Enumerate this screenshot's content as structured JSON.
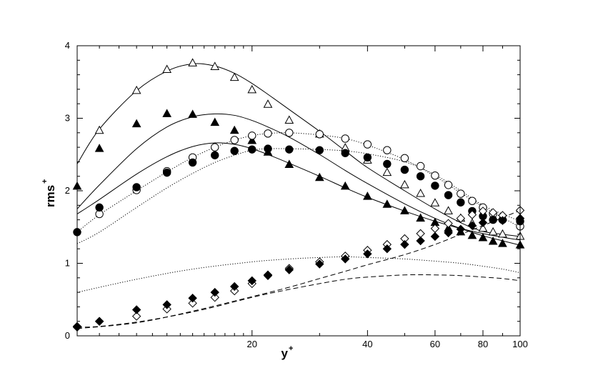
{
  "chart_data": {
    "type": "line",
    "title": "",
    "xlabel": "y",
    "xlabel_superscript": "+",
    "ylabel": "rms",
    "ylabel_superscript": "+",
    "x_scale": "log",
    "xlim": [
      7,
      100
    ],
    "ylim": [
      0,
      4
    ],
    "x_ticks": [
      20,
      40,
      60,
      80,
      100
    ],
    "y_ticks": [
      0,
      1,
      2,
      3,
      4
    ],
    "grid": false,
    "legend": "none",
    "lines": [
      {
        "style": "solid",
        "x": [
          7,
          8,
          10,
          12,
          14,
          16,
          18,
          20,
          22,
          25,
          30,
          35,
          40,
          50,
          60,
          70,
          80,
          90,
          100
        ],
        "y": [
          2.37,
          2.85,
          3.38,
          3.65,
          3.75,
          3.72,
          3.62,
          3.48,
          3.33,
          3.12,
          2.82,
          2.55,
          2.32,
          2.0,
          1.75,
          1.56,
          1.44,
          1.4,
          1.37
        ]
      },
      {
        "style": "solid",
        "x": [
          7,
          8,
          10,
          12,
          14,
          16,
          18,
          20,
          22,
          25,
          30,
          35,
          40,
          50,
          60,
          70,
          80,
          90,
          100
        ],
        "y": [
          1.75,
          2.08,
          2.58,
          2.88,
          3.02,
          3.06,
          3.04,
          2.97,
          2.88,
          2.74,
          2.5,
          2.28,
          2.1,
          1.82,
          1.62,
          1.48,
          1.38,
          1.31,
          1.25
        ]
      },
      {
        "style": "solid",
        "x": [
          7,
          8,
          10,
          12,
          14,
          16,
          18,
          20,
          22,
          25,
          30,
          35,
          40,
          50,
          60,
          70,
          80,
          90,
          100
        ],
        "y": [
          1.68,
          1.88,
          2.23,
          2.47,
          2.61,
          2.66,
          2.64,
          2.58,
          2.5,
          2.38,
          2.2,
          2.04,
          1.91,
          1.72,
          1.58,
          1.48,
          1.41,
          1.36,
          1.32
        ]
      },
      {
        "style": "dotted",
        "x": [
          7,
          8,
          10,
          12,
          14,
          16,
          18,
          20,
          22,
          25,
          30,
          35,
          40,
          50,
          60,
          70,
          80,
          90,
          100
        ],
        "y": [
          1.43,
          1.67,
          2.0,
          2.26,
          2.46,
          2.6,
          2.7,
          2.76,
          2.79,
          2.8,
          2.77,
          2.72,
          2.63,
          2.43,
          2.2,
          1.97,
          1.78,
          1.63,
          1.5
        ]
      },
      {
        "style": "dotted",
        "x": [
          7,
          8,
          10,
          12,
          14,
          16,
          18,
          20,
          22,
          25,
          30,
          35,
          40,
          50,
          60,
          70,
          80,
          90,
          100
        ],
        "y": [
          1.27,
          1.43,
          1.77,
          2.04,
          2.24,
          2.39,
          2.49,
          2.56,
          2.58,
          2.58,
          2.57,
          2.55,
          2.51,
          2.4,
          2.22,
          2.0,
          1.8,
          1.68,
          1.58
        ]
      },
      {
        "style": "dotted",
        "x": [
          7,
          10,
          14,
          20,
          25,
          30,
          35,
          40,
          50,
          60,
          70,
          80,
          90,
          100
        ],
        "y": [
          0.6,
          0.78,
          0.92,
          1.02,
          1.06,
          1.08,
          1.09,
          1.08,
          1.06,
          1.03,
          1.0,
          0.96,
          0.92,
          0.87
        ]
      },
      {
        "style": "dashed",
        "x": [
          7,
          8,
          10,
          12,
          14,
          16,
          18,
          20,
          22,
          25,
          30,
          35,
          40,
          50,
          60,
          70,
          80,
          90,
          100
        ],
        "y": [
          0.12,
          0.13,
          0.19,
          0.26,
          0.33,
          0.4,
          0.47,
          0.53,
          0.58,
          0.64,
          0.72,
          0.78,
          0.81,
          0.84,
          0.84,
          0.83,
          0.81,
          0.79,
          0.76
        ]
      },
      {
        "style": "dashed",
        "x": [
          7,
          10,
          14,
          20,
          25,
          30,
          35,
          40,
          50,
          60,
          70,
          80,
          90,
          100
        ],
        "y": [
          0.1,
          0.18,
          0.34,
          0.54,
          0.67,
          0.79,
          0.89,
          0.98,
          1.12,
          1.26,
          1.4,
          1.52,
          1.63,
          1.73
        ]
      }
    ],
    "markers": [
      {
        "shape": "triangle",
        "filled": false,
        "x": [
          8,
          10,
          12,
          14,
          16,
          18,
          20,
          22,
          25,
          30,
          35,
          40,
          45,
          50,
          55,
          60,
          65,
          70,
          75,
          80,
          85,
          90,
          100
        ],
        "y": [
          2.83,
          3.38,
          3.67,
          3.76,
          3.71,
          3.56,
          3.39,
          3.19,
          2.97,
          2.78,
          2.59,
          2.42,
          2.25,
          2.08,
          1.96,
          1.83,
          1.72,
          1.62,
          1.55,
          1.48,
          1.43,
          1.4,
          1.37
        ]
      },
      {
        "shape": "triangle",
        "filled": true,
        "x": [
          7,
          8,
          10,
          12,
          14,
          16,
          18,
          20,
          22,
          25,
          30,
          35,
          40,
          45,
          50,
          55,
          60,
          65,
          70,
          75,
          80,
          85,
          90,
          100
        ],
        "y": [
          2.06,
          2.58,
          2.92,
          3.06,
          3.05,
          2.94,
          2.83,
          2.69,
          2.53,
          2.36,
          2.18,
          2.06,
          1.92,
          1.81,
          1.72,
          1.62,
          1.56,
          1.48,
          1.43,
          1.38,
          1.35,
          1.3,
          1.27,
          1.25
        ]
      },
      {
        "shape": "circle",
        "filled": false,
        "x": [
          8,
          10,
          12,
          14,
          16,
          18,
          20,
          22,
          25,
          30,
          35,
          40,
          45,
          50,
          55,
          60,
          65,
          70,
          75,
          80,
          85,
          90,
          100
        ],
        "y": [
          1.68,
          2.01,
          2.27,
          2.46,
          2.6,
          2.7,
          2.76,
          2.79,
          2.8,
          2.78,
          2.72,
          2.64,
          2.56,
          2.45,
          2.34,
          2.21,
          2.08,
          1.96,
          1.86,
          1.77,
          1.68,
          1.6,
          1.51
        ]
      },
      {
        "shape": "circle",
        "filled": true,
        "x": [
          7,
          8,
          10,
          12,
          14,
          16,
          18,
          20,
          22,
          25,
          30,
          35,
          40,
          45,
          50,
          55,
          60,
          65,
          70,
          75,
          80,
          85,
          90,
          100
        ],
        "y": [
          1.43,
          1.77,
          2.05,
          2.25,
          2.39,
          2.49,
          2.55,
          2.57,
          2.58,
          2.57,
          2.56,
          2.52,
          2.46,
          2.37,
          2.29,
          2.2,
          2.07,
          1.94,
          1.84,
          1.72,
          1.65,
          1.6,
          1.6,
          1.58
        ]
      },
      {
        "shape": "diamond",
        "filled": false,
        "x": [
          7,
          8,
          10,
          12,
          14,
          16,
          18,
          20,
          22,
          25,
          30,
          35,
          40,
          45,
          50,
          55,
          60,
          65,
          70,
          75,
          80,
          85,
          90,
          100
        ],
        "y": [
          0.12,
          0.2,
          0.27,
          0.37,
          0.45,
          0.53,
          0.62,
          0.72,
          0.83,
          0.93,
          1.02,
          1.1,
          1.18,
          1.26,
          1.34,
          1.41,
          1.48,
          1.55,
          1.62,
          1.67,
          1.72,
          1.7,
          1.66,
          1.73
        ]
      },
      {
        "shape": "diamond",
        "filled": true,
        "x": [
          7,
          8,
          10,
          12,
          14,
          16,
          18,
          20,
          22,
          25,
          30,
          35,
          40,
          45,
          50,
          55,
          60,
          65,
          70,
          75,
          80,
          90,
          100
        ],
        "y": [
          0.13,
          0.2,
          0.36,
          0.43,
          0.52,
          0.6,
          0.68,
          0.76,
          0.84,
          0.91,
          0.99,
          1.06,
          1.13,
          1.2,
          1.26,
          1.31,
          1.37,
          1.42,
          1.47,
          1.52,
          1.56,
          1.59,
          1.62
        ]
      }
    ]
  }
}
